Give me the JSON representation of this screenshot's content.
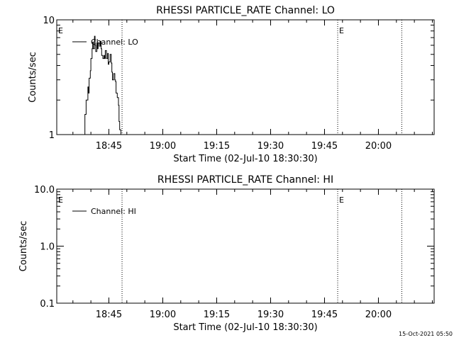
{
  "footer": "15-Oct-2021 05:50",
  "chart_data": [
    {
      "type": "line",
      "title": "RHESSI PARTICLE_RATE Channel: LO",
      "xlabel": "Start Time (02-Jul-10 18:30:30)",
      "ylabel": "Counts/sec",
      "yscale": "log",
      "ylim": [
        1,
        10
      ],
      "ytick_labels": [
        "1",
        "10"
      ],
      "xlim_seconds_from_start": [
        0,
        6300
      ],
      "xticks": [
        "18:45",
        "19:00",
        "19:15",
        "19:30",
        "19:45",
        "20:00"
      ],
      "legend": "top-left",
      "grid": false,
      "event_markers": [
        {
          "label": "E",
          "time": "18:30:30"
        },
        {
          "label": "E",
          "time": "19:48:40"
        }
      ],
      "vertical_dotted_lines": [
        "18:48:40",
        "20:06:30"
      ],
      "series": [
        {
          "name": "Channel: LO",
          "color": "#000000",
          "x": [
            "18:38:10",
            "18:38:20",
            "18:38:40",
            "18:38:50",
            "18:39:10",
            "18:39:20",
            "18:39:30",
            "18:39:50",
            "18:40:00",
            "18:40:20",
            "18:40:30",
            "18:40:40",
            "18:41:00",
            "18:41:10",
            "18:41:20",
            "18:41:40",
            "18:41:50",
            "18:42:00",
            "18:42:20",
            "18:42:40",
            "18:42:50",
            "18:43:00",
            "18:43:20",
            "18:43:40",
            "18:43:50",
            "18:44:00",
            "18:44:20",
            "18:44:40",
            "18:44:50",
            "18:45:00",
            "18:45:20",
            "18:45:40",
            "18:45:50",
            "18:46:00",
            "18:46:20",
            "18:46:40",
            "18:46:50",
            "18:47:00",
            "18:47:20",
            "18:47:40",
            "18:47:50",
            "18:48:00",
            "18:48:20"
          ],
          "y": [
            1.0,
            1.5,
            2.0,
            2.0,
            2.6,
            2.3,
            3.1,
            3.6,
            4.6,
            5.6,
            6.4,
            5.6,
            7.2,
            6.0,
            5.3,
            6.3,
            5.6,
            6.3,
            5.9,
            6.5,
            5.6,
            4.9,
            4.6,
            4.9,
            4.6,
            5.4,
            4.6,
            5.1,
            4.1,
            4.3,
            5.0,
            4.2,
            3.5,
            3.0,
            3.4,
            3.0,
            2.9,
            2.3,
            2.1,
            1.8,
            1.3,
            1.1,
            1.0
          ]
        }
      ]
    },
    {
      "type": "line",
      "title": "RHESSI PARTICLE_RATE Channel: HI",
      "xlabel": "Start Time (02-Jul-10 18:30:30)",
      "ylabel": "Counts/sec",
      "yscale": "log",
      "ylim": [
        0.1,
        10
      ],
      "ytick_labels": [
        "0.1",
        "1.0",
        "10.0"
      ],
      "xlim_seconds_from_start": [
        0,
        6300
      ],
      "xticks": [
        "18:45",
        "19:00",
        "19:15",
        "19:30",
        "19:45",
        "20:00"
      ],
      "legend": "top-left",
      "grid": false,
      "event_markers": [
        {
          "label": "E",
          "time": "18:30:30"
        },
        {
          "label": "E",
          "time": "19:48:40"
        }
      ],
      "vertical_dotted_lines": [
        "18:48:40",
        "20:06:30"
      ],
      "series": [
        {
          "name": "Channel: HI",
          "color": "#000000",
          "x": [],
          "y": []
        }
      ]
    }
  ]
}
